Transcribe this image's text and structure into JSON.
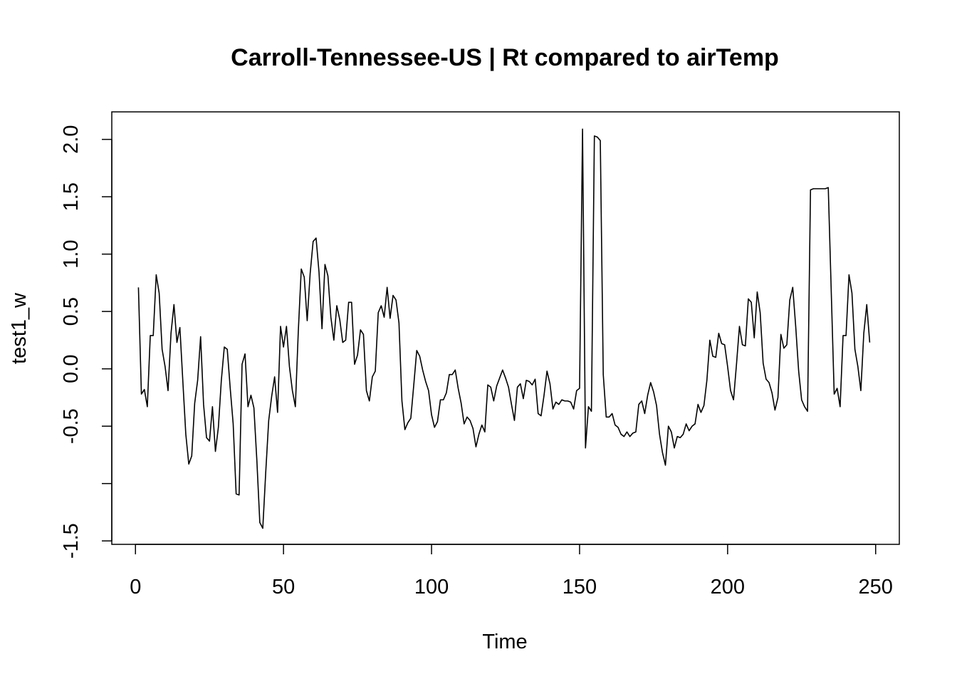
{
  "chart_data": {
    "type": "line",
    "title": "Carroll-Tennessee-US | Rt compared to airTemp",
    "xlabel": "Time",
    "ylabel": "test1_w",
    "xlim": [
      -8,
      258
    ],
    "ylim": [
      -1.53,
      2.24
    ],
    "x_ticks": [
      0,
      50,
      100,
      150,
      200,
      250
    ],
    "x_tick_labels": [
      "0",
      "50",
      "100",
      "150",
      "200",
      "250"
    ],
    "y_ticks": [
      -1.5,
      -1.0,
      -0.5,
      0.0,
      0.5,
      1.0,
      1.5,
      2.0
    ],
    "y_tick_labels": [
      "-1.5",
      "",
      "-0.5",
      "0.0",
      "0.5",
      "1.0",
      "1.5",
      "2.0"
    ],
    "grid": false,
    "line_color": "#000000",
    "series": [
      {
        "x_start": 1,
        "values": [
          0.71,
          -0.22,
          -0.18,
          -0.33,
          0.29,
          0.29,
          0.82,
          0.66,
          0.17,
          0.02,
          -0.19,
          0.31,
          0.56,
          0.23,
          0.36,
          -0.11,
          -0.57,
          -0.83,
          -0.76,
          -0.3,
          -0.1,
          0.28,
          -0.31,
          -0.6,
          -0.63,
          -0.33,
          -0.72,
          -0.51,
          -0.1,
          0.19,
          0.17,
          -0.17,
          -0.48,
          -1.09,
          -1.1,
          0.04,
          0.13,
          -0.33,
          -0.23,
          -0.34,
          -0.8,
          -1.34,
          -1.39,
          -0.9,
          -0.45,
          -0.24,
          -0.07,
          -0.38,
          0.37,
          0.19,
          0.37,
          0.02,
          -0.19,
          -0.33,
          0.33,
          0.87,
          0.8,
          0.42,
          0.83,
          1.11,
          1.14,
          0.84,
          0.35,
          0.91,
          0.81,
          0.45,
          0.25,
          0.55,
          0.43,
          0.23,
          0.25,
          0.58,
          0.58,
          0.04,
          0.12,
          0.34,
          0.3,
          -0.19,
          -0.28,
          -0.07,
          -0.02,
          0.49,
          0.55,
          0.45,
          0.71,
          0.44,
          0.64,
          0.6,
          0.4,
          -0.28,
          -0.53,
          -0.47,
          -0.43,
          -0.14,
          0.16,
          0.11,
          -0.01,
          -0.11,
          -0.19,
          -0.4,
          -0.51,
          -0.46,
          -0.27,
          -0.27,
          -0.21,
          -0.05,
          -0.05,
          -0.01,
          -0.17,
          -0.3,
          -0.48,
          -0.42,
          -0.45,
          -0.52,
          -0.68,
          -0.57,
          -0.49,
          -0.55,
          -0.14,
          -0.16,
          -0.28,
          -0.15,
          -0.08,
          -0.01,
          -0.08,
          -0.16,
          -0.31,
          -0.45,
          -0.16,
          -0.13,
          -0.26,
          -0.1,
          -0.11,
          -0.14,
          -0.09,
          -0.39,
          -0.41,
          -0.23,
          -0.02,
          -0.13,
          -0.35,
          -0.29,
          -0.31,
          -0.27,
          -0.28,
          -0.28,
          -0.29,
          -0.35,
          -0.19,
          -0.17,
          2.09,
          -0.69,
          -0.33,
          -0.37,
          2.03,
          2.02,
          1.99,
          -0.05,
          -0.42,
          -0.42,
          -0.39,
          -0.49,
          -0.51,
          -0.57,
          -0.59,
          -0.55,
          -0.59,
          -0.56,
          -0.55,
          -0.31,
          -0.28,
          -0.39,
          -0.23,
          -0.12,
          -0.2,
          -0.32,
          -0.57,
          -0.73,
          -0.84,
          -0.5,
          -0.55,
          -0.69,
          -0.59,
          -0.6,
          -0.57,
          -0.48,
          -0.54,
          -0.5,
          -0.48,
          -0.31,
          -0.38,
          -0.32,
          -0.1,
          0.25,
          0.11,
          0.1,
          0.31,
          0.22,
          0.21,
          0.02,
          -0.19,
          -0.27,
          0.04,
          0.37,
          0.21,
          0.2,
          0.61,
          0.58,
          0.27,
          0.67,
          0.49,
          0.05,
          -0.09,
          -0.12,
          -0.21,
          -0.36,
          -0.25,
          0.3,
          0.18,
          0.21,
          0.6,
          0.71,
          0.37,
          -0.02,
          -0.27,
          -0.33,
          -0.37,
          1.56,
          1.57,
          1.57,
          1.57,
          1.57,
          1.57,
          1.58,
          0.68,
          -0.22,
          -0.17,
          -0.33,
          0.29,
          0.29,
          0.82,
          0.66,
          0.17,
          0.02,
          -0.19,
          0.31,
          0.56,
          0.23
        ]
      }
    ]
  }
}
